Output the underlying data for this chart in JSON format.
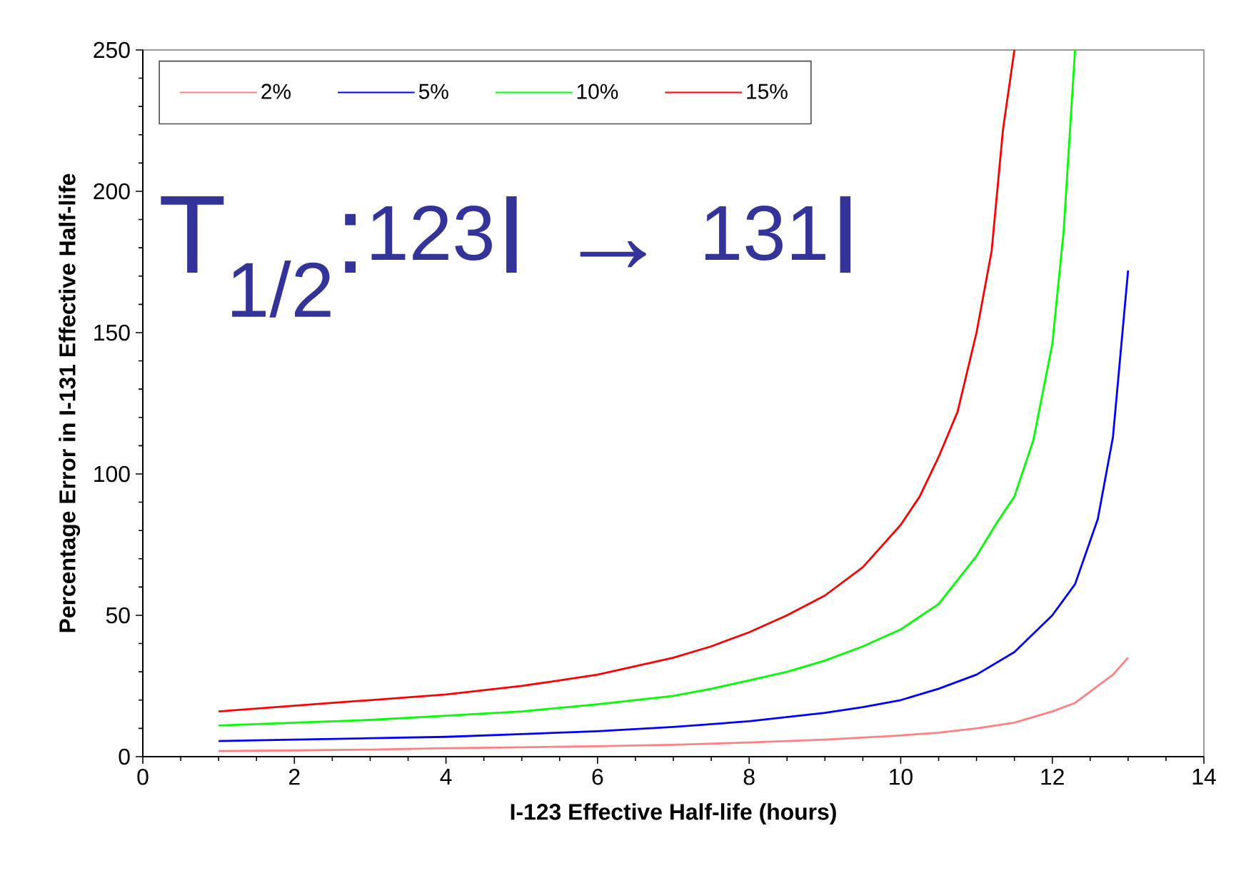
{
  "chart_data": {
    "type": "line",
    "xlabel": "I-123 Effective Half-life (hours)",
    "ylabel": "Percentage Error in I-131 Effective Half-life",
    "annotations": [
      "T$_{1/2}$:$^{123}$I → $^{131}$I"
    ],
    "xlim": [
      0,
      14
    ],
    "ylim": [
      0,
      250
    ],
    "xticks": [
      0,
      2,
      4,
      6,
      8,
      10,
      12,
      14
    ],
    "yticks": [
      0,
      50,
      100,
      150,
      200,
      250
    ],
    "legend": "top left",
    "grid": false,
    "marker": "none",
    "line_style": "solid",
    "series": [
      {
        "name": "2%",
        "color": "#ff8080",
        "x": [
          1,
          2,
          3,
          4,
          5,
          6,
          7,
          8,
          9,
          10,
          10.5,
          11,
          11.5,
          12,
          12.3,
          12.6,
          12.8,
          13
        ],
        "values": [
          2,
          2.2,
          2.5,
          3,
          3.3,
          3.7,
          4.2,
          5,
          6,
          7.5,
          8.5,
          10,
          12,
          16,
          19,
          25,
          29,
          35
        ]
      },
      {
        "name": "5%",
        "color": "#0000ff",
        "x": [
          1,
          2,
          3,
          4,
          5,
          6,
          7,
          8,
          8.5,
          9,
          9.5,
          10,
          10.5,
          11,
          11.5,
          12,
          12.3,
          12.6,
          12.8,
          13
        ],
        "values": [
          5.5,
          6,
          6.5,
          7,
          8,
          9,
          10.5,
          12.5,
          14,
          15.5,
          17.5,
          20,
          24,
          29,
          37,
          50,
          61,
          84,
          113,
          172
        ]
      },
      {
        "name": "10%",
        "color": "#00ff00",
        "x": [
          1,
          2,
          3,
          4,
          5,
          6,
          7,
          7.5,
          8,
          8.5,
          9,
          9.5,
          10,
          10.5,
          11,
          11.25,
          11.5,
          11.75,
          12,
          12.15,
          12.3
        ],
        "values": [
          11,
          12,
          13,
          14.5,
          16,
          18.5,
          21.5,
          24,
          27,
          30,
          34,
          39,
          45,
          54,
          71,
          82,
          92,
          112,
          146,
          186,
          250
        ]
      },
      {
        "name": "15%",
        "color": "#ff0000",
        "x": [
          1,
          1.5,
          2,
          2.5,
          3,
          3.5,
          4,
          4.5,
          5,
          5.5,
          6,
          6.5,
          7,
          7.5,
          8,
          8.5,
          9,
          9.5,
          10,
          10.25,
          10.5,
          10.75,
          11,
          11.2,
          11.35,
          11.5
        ],
        "values": [
          16,
          17,
          18,
          19,
          20,
          21,
          22,
          23.5,
          25,
          27,
          29,
          32,
          35,
          39,
          44,
          50,
          57,
          67,
          82,
          92,
          106,
          122,
          150,
          179,
          222,
          250
        ]
      }
    ]
  }
}
